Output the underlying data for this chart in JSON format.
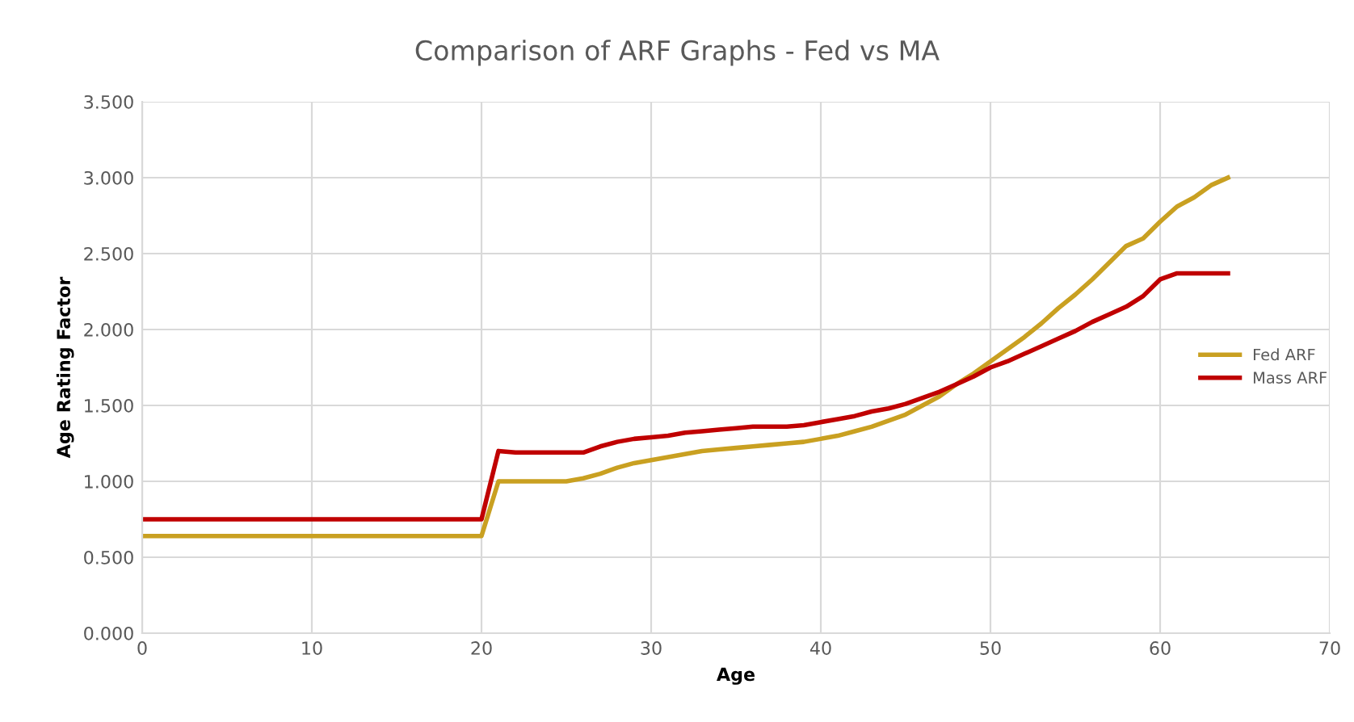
{
  "chart_data": {
    "type": "line",
    "title": "Comparison of ARF Graphs - Fed vs MA",
    "xlabel": "Age",
    "ylabel": "Age Rating Factor",
    "x": [
      0,
      1,
      2,
      3,
      4,
      5,
      6,
      7,
      8,
      9,
      10,
      11,
      12,
      13,
      14,
      15,
      16,
      17,
      18,
      19,
      20,
      21,
      22,
      23,
      24,
      25,
      26,
      27,
      28,
      29,
      30,
      31,
      32,
      33,
      34,
      35,
      36,
      37,
      38,
      39,
      40,
      41,
      42,
      43,
      44,
      45,
      46,
      47,
      48,
      49,
      50,
      51,
      52,
      53,
      54,
      55,
      56,
      57,
      58,
      59,
      60,
      61,
      62,
      63,
      64
    ],
    "series": [
      {
        "name": "Fed ARF",
        "color": "#c9a021",
        "values": [
          0.64,
          0.64,
          0.64,
          0.64,
          0.64,
          0.64,
          0.64,
          0.64,
          0.64,
          0.64,
          0.64,
          0.64,
          0.64,
          0.64,
          0.64,
          0.64,
          0.64,
          0.64,
          0.64,
          0.64,
          0.64,
          1.0,
          1.0,
          1.0,
          1.0,
          1.0,
          1.02,
          1.05,
          1.09,
          1.12,
          1.14,
          1.16,
          1.18,
          1.2,
          1.21,
          1.22,
          1.23,
          1.24,
          1.25,
          1.26,
          1.28,
          1.3,
          1.33,
          1.36,
          1.4,
          1.44,
          1.5,
          1.56,
          1.64,
          1.71,
          1.79,
          1.87,
          1.95,
          2.04,
          2.14,
          2.23,
          2.33,
          2.44,
          2.55,
          2.6,
          2.71,
          2.81,
          2.87,
          2.95,
          3.0
        ]
      },
      {
        "name": "Mass ARF",
        "color": "#c00000",
        "values": [
          0.75,
          0.75,
          0.75,
          0.75,
          0.75,
          0.75,
          0.75,
          0.75,
          0.75,
          0.75,
          0.75,
          0.75,
          0.75,
          0.75,
          0.75,
          0.75,
          0.75,
          0.75,
          0.75,
          0.75,
          0.75,
          1.2,
          1.19,
          1.19,
          1.19,
          1.19,
          1.19,
          1.23,
          1.26,
          1.28,
          1.29,
          1.3,
          1.32,
          1.33,
          1.34,
          1.35,
          1.36,
          1.36,
          1.36,
          1.37,
          1.39,
          1.41,
          1.43,
          1.46,
          1.48,
          1.51,
          1.55,
          1.59,
          1.64,
          1.69,
          1.75,
          1.79,
          1.84,
          1.89,
          1.94,
          1.99,
          2.05,
          2.1,
          2.15,
          2.22,
          2.33,
          2.37,
          2.37,
          2.37,
          2.37
        ]
      }
    ],
    "xlim": [
      0,
      70
    ],
    "xticks": [
      0,
      10,
      20,
      30,
      40,
      50,
      60,
      70
    ],
    "ylim": [
      0,
      3.5
    ],
    "yticks": [
      {
        "value": 0,
        "label": "0.000"
      },
      {
        "value": 0.5,
        "label": "0.500"
      },
      {
        "value": 1,
        "label": "1.000"
      },
      {
        "value": 1.5,
        "label": "1.500"
      },
      {
        "value": 2,
        "label": "2.000"
      },
      {
        "value": 2.5,
        "label": "2.500"
      },
      {
        "value": 3,
        "label": "3.000"
      },
      {
        "value": 3.5,
        "label": "3.500"
      }
    ],
    "grid": true,
    "legend": "right",
    "marker": "none",
    "line_style": "solid"
  }
}
